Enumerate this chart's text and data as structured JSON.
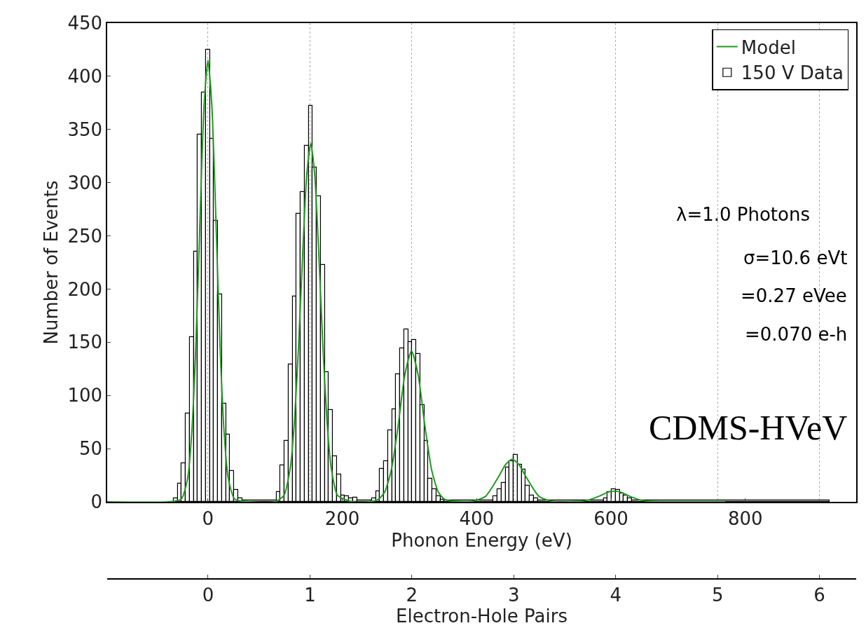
{
  "chart_data": {
    "type": "histogram",
    "xlabel": "Phonon Energy (eV)",
    "ylabel": "Number of Events",
    "x2label": "Electron-Hole Pairs",
    "xlim": [
      -150,
      965
    ],
    "xticks": [
      0,
      200,
      400,
      600,
      800
    ],
    "x2lim": [
      -0.99,
      6.36
    ],
    "x2ticks": [
      0,
      1,
      2,
      3,
      4,
      5,
      6
    ],
    "ylim": [
      0,
      450
    ],
    "yticks": [
      0,
      50,
      100,
      150,
      200,
      250,
      300,
      350,
      400,
      450
    ],
    "grid": "x",
    "legend": "top right",
    "series": [
      {
        "name": "Model",
        "type": "line",
        "color": "#1f9a1f",
        "line_style": "solid",
        "marker": "none",
        "x": [
          -150,
          -60,
          -40,
          -30,
          -24,
          -18,
          -12,
          -6,
          0,
          6,
          12,
          18,
          24,
          30,
          40,
          60,
          100,
          113,
          123,
          129,
          135,
          141,
          147,
          153,
          159,
          165,
          171,
          177,
          183,
          193,
          215,
          240,
          253,
          263,
          273,
          283,
          293,
          303,
          313,
          323,
          333,
          343,
          353,
          380,
          393,
          413,
          433,
          443,
          453,
          463,
          473,
          493,
          513,
          545,
          565,
          585,
          595,
          605,
          615,
          625,
          645,
          665,
          700,
          770
        ],
        "values": [
          0,
          0,
          2.5,
          23,
          66,
          147,
          262,
          370,
          415,
          370,
          262,
          147,
          66,
          23,
          2.5,
          0,
          0,
          6,
          34,
          78,
          148,
          233,
          307,
          337,
          307,
          233,
          148,
          78,
          34,
          6,
          0,
          0,
          2,
          9,
          30,
          71,
          119,
          142,
          119,
          71,
          30,
          9,
          2,
          0,
          0.4,
          5,
          24,
          35,
          40,
          35,
          24,
          5,
          0.4,
          0.1,
          1.4,
          6,
          9,
          10,
          9,
          6,
          1.4,
          0.1,
          0,
          0
        ]
      },
      {
        "name": "150 V Data",
        "color": "#000000",
        "bins": [
          -51,
          -45,
          -39,
          -33,
          -27,
          -21,
          -15,
          -9,
          -3,
          3,
          9,
          15,
          21,
          27,
          33,
          39,
          45,
          51,
          102,
          108,
          114,
          120,
          126,
          132,
          138,
          144,
          150,
          156,
          162,
          168,
          174,
          180,
          186,
          192,
          198,
          204,
          210,
          216,
          222,
          244,
          250,
          256,
          262,
          268,
          274,
          280,
          286,
          292,
          298,
          304,
          310,
          316,
          322,
          328,
          334,
          340,
          346,
          352,
          425,
          431,
          437,
          443,
          449,
          455,
          461,
          467,
          473,
          479,
          485,
          491,
          589,
          595,
          601,
          607,
          613,
          619,
          625,
          631,
          925
        ],
        "values": [
          3,
          17,
          36,
          83,
          155,
          235,
          345,
          385,
          425,
          341,
          264,
          195,
          92,
          63,
          29,
          11,
          3,
          1,
          9,
          34,
          57,
          129,
          193,
          271,
          291,
          335,
          372,
          314,
          287,
          223,
          122,
          86,
          43,
          26,
          6,
          5,
          3,
          4,
          1,
          3,
          10,
          31,
          38,
          67,
          87,
          120,
          144,
          162,
          150,
          152,
          139,
          91,
          57,
          22,
          12,
          5,
          2,
          1,
          5,
          12,
          18,
          32,
          38,
          44,
          35,
          30,
          15,
          6,
          3,
          1,
          3,
          9,
          12,
          11,
          8,
          6,
          3,
          1
        ]
      }
    ],
    "annotations": [
      "λ=1.0 Photons",
      "σ=10.6 eVt",
      "=0.27 eVee",
      "=0.070 e-h",
      "CDMS-HVeV"
    ]
  }
}
